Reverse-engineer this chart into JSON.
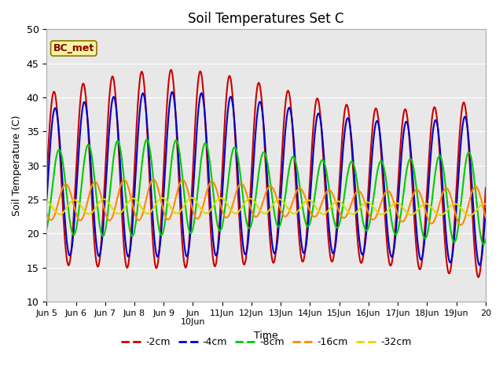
{
  "title": "Soil Temperatures Set C",
  "xlabel": "Time",
  "ylabel": "Soil Temperature (C)",
  "ylim": [
    10,
    50
  ],
  "xlim_days": [
    5,
    20
  ],
  "annotation_text": "BC_met",
  "line_colors": [
    "#cc0000",
    "#0000cc",
    "#00cc00",
    "#ff8800",
    "#dddd00"
  ],
  "line_labels": [
    "-2cm",
    "-4cm",
    "-8cm",
    "-16cm",
    "-32cm"
  ],
  "background_color": "#e8e8e8",
  "xtick_labels": [
    "Jun 5",
    "Jun 6",
    "Jun 7",
    "Jun 8",
    "Jun 9",
    "Jun 10Jun",
    "11Jun",
    "12Jun",
    "13Jun",
    "14Jun",
    "15Jun",
    "16Jun",
    "17Jun",
    "18Jun",
    "19Jun",
    "20"
  ],
  "depth_amplitudes": [
    13,
    11,
    6,
    2.5,
    1.0
  ],
  "depth_means": [
    28,
    27.5,
    26,
    24.5,
    23.8
  ],
  "depth_phase_shifts": [
    0.0,
    0.08,
    0.35,
    0.8,
    1.4
  ],
  "amplitude_growth": [
    1.0,
    1.0,
    1.0,
    1.0,
    1.0
  ]
}
